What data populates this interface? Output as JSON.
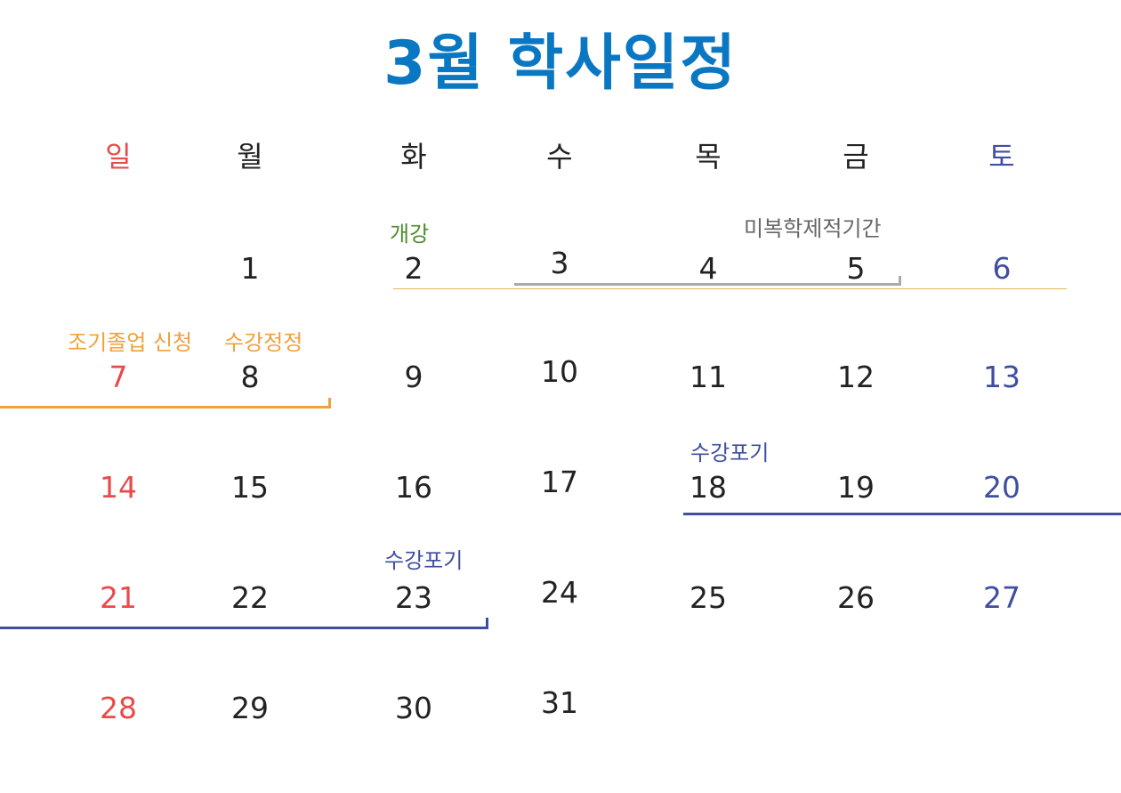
{
  "title": "3월 학사일정",
  "colors": {
    "title": "#0a77c2",
    "sunday": "#e94b4b",
    "saturday": "#3f4ea0",
    "weekday": "#222222",
    "event_green": "#4e8b2d",
    "event_gray": "#666666",
    "event_orange": "#f2a03c",
    "event_blue": "#3f4ea0",
    "line_gold": "#e2b55a",
    "line_gray": "#aaaaaa"
  },
  "weekdays": [
    "일",
    "월",
    "화",
    "수",
    "목",
    "금",
    "토"
  ],
  "weeks": [
    [
      "",
      "1",
      "2",
      "3",
      "4",
      "5",
      "6"
    ],
    [
      "7",
      "8",
      "9",
      "10",
      "11",
      "12",
      "13"
    ],
    [
      "14",
      "15",
      "16",
      "17",
      "18",
      "19",
      "20"
    ],
    [
      "21",
      "22",
      "23",
      "24",
      "25",
      "26",
      "27"
    ],
    [
      "28",
      "29",
      "30",
      "31",
      "",
      "",
      ""
    ]
  ],
  "events": {
    "opening": "개강",
    "no_penalty_period": "미복학제적기간",
    "early_graduation": "조기졸업 신청",
    "course_correction": "수강정정",
    "course_drop_1": "수강포기",
    "course_drop_2": "수강포기"
  }
}
